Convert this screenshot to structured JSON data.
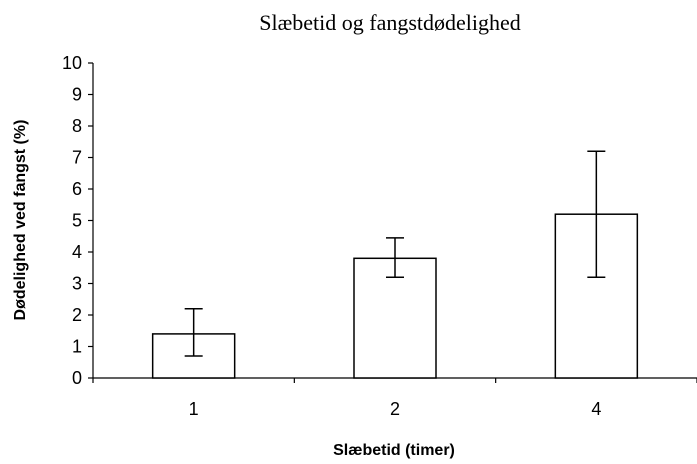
{
  "chart_data": {
    "type": "bar",
    "title": "Slæbetid og fangstdødelighed",
    "xlabel": "Slæbetid (timer)",
    "ylabel": "Dødelighed ved fangst (%)",
    "categories": [
      "1",
      "2",
      "4"
    ],
    "values": [
      1.4,
      3.8,
      5.2
    ],
    "error_low": [
      0.7,
      3.2,
      3.2
    ],
    "error_high": [
      2.2,
      4.45,
      7.2
    ],
    "ylim": [
      0,
      10
    ],
    "yticks": [
      "0",
      "1",
      "2",
      "3",
      "4",
      "5",
      "6",
      "7",
      "8",
      "9",
      "10"
    ],
    "grid": false,
    "legend": "none",
    "bar_fill": "#ffffff",
    "bar_stroke": "#000000"
  }
}
